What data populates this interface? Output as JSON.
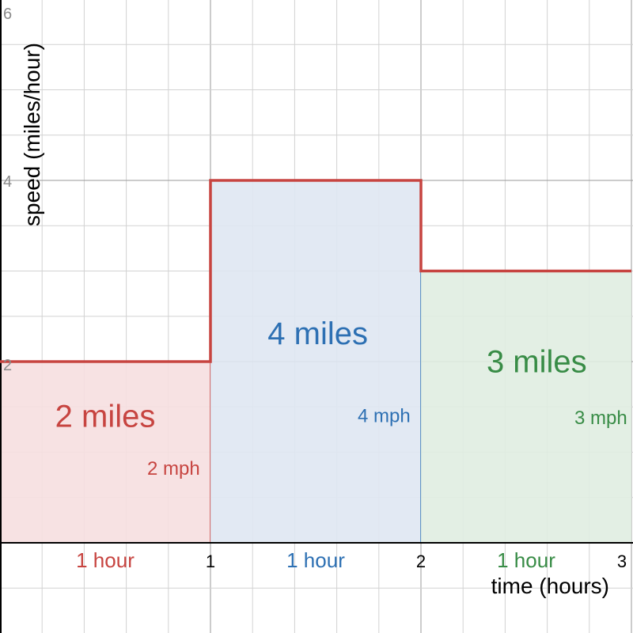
{
  "chart_data": {
    "type": "area",
    "xlabel": "time (hours)",
    "ylabel": "speed (miles/hour)",
    "xlim": [
      0,
      3
    ],
    "ylim": [
      0,
      6
    ],
    "grid": true,
    "x_ticks": [
      "1",
      "2",
      "3"
    ],
    "y_ticks": [
      "2",
      "4",
      "6"
    ],
    "segments": [
      {
        "x0": 0,
        "x1": 1,
        "speed": 2,
        "area_label": "2 miles",
        "speed_label": "2 mph",
        "duration_label": "1 hour",
        "color": "#c74440",
        "fill": "#f6dfe0"
      },
      {
        "x0": 1,
        "x1": 2,
        "speed": 4,
        "area_label": "4 miles",
        "speed_label": "4 mph",
        "duration_label": "1 hour",
        "color": "#2d70b3",
        "fill": "#dfe7f2"
      },
      {
        "x0": 2,
        "x1": 3,
        "speed": 3,
        "area_label": "3 miles",
        "speed_label": "3 mph",
        "duration_label": "1 hour",
        "color": "#388c46",
        "fill": "#e0ede1"
      }
    ],
    "step_line_color": "#c74440"
  }
}
